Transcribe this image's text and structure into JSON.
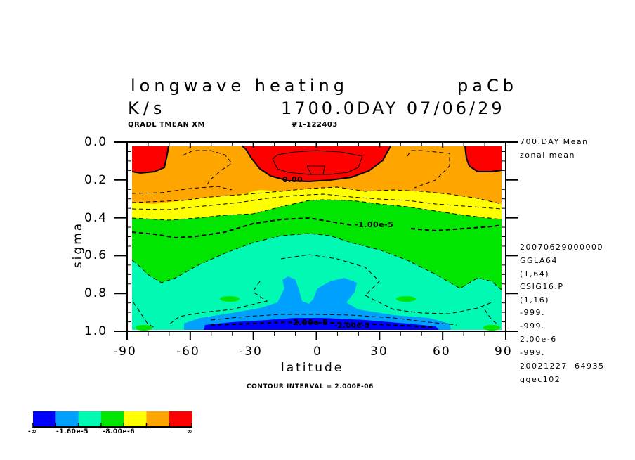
{
  "chart_data": {
    "type": "contour",
    "title": "longwave heating",
    "experiment": "paCb",
    "units": "K/s",
    "time_label": "1700.0DAY 07/06/29",
    "variable_line": "QRADL TMEAN XM",
    "run_id": "#1-122403",
    "xlabel": "latitude",
    "ylabel": "sigma",
    "xlim": [
      -90,
      90
    ],
    "ylim": [
      1.0,
      0.0
    ],
    "x_ticks": [
      "-90",
      "-60",
      "-30",
      "0",
      "30",
      "60",
      "90"
    ],
    "y_ticks": [
      "0.0",
      "0.2",
      "0.4",
      "0.6",
      "0.8",
      "1.0"
    ],
    "contour_interval_label": "CONTOUR INTERVAL = 2.000E-06",
    "contour_labels": [
      "0.00",
      "-1.00e-5",
      "-2.00e-5",
      "-2.00e-5"
    ],
    "levels": [
      {
        "name": "band-1",
        "range": "< -1.60e-5",
        "color": "#0000ff"
      },
      {
        "name": "band-2",
        "range": "-1.60e-5 .. -1.20e-5",
        "color": "#00a0ff"
      },
      {
        "name": "band-3",
        "range": "-1.20e-5 .. -8.00e-6",
        "color": "#00fab4"
      },
      {
        "name": "band-4",
        "range": "-8.00e-6 .. -4.00e-6",
        "color": "#00e600"
      },
      {
        "name": "band-5",
        "range": "-4.00e-6 .. -2.00e-6",
        "color": "#ffff00"
      },
      {
        "name": "band-6",
        "range": "-2.00e-6 .. 0",
        "color": "#ffa500"
      },
      {
        "name": "band-7",
        "range": "> 0",
        "color": "#ff0000"
      }
    ],
    "colorbar_labels": [
      "-∞",
      "-1.60e-5",
      "-8.00e-6",
      "∞"
    ],
    "grid": false
  },
  "side_info": [
    "700.DAY Mean",
    "zonal mean",
    "20070629000000",
    "GGLA64",
    "(1,64)",
    "CSIG16.P",
    "(1,16)",
    "-999.",
    "-999.",
    "2.00e-6",
    "-999.",
    "20021227  64935",
    "ggec102"
  ]
}
